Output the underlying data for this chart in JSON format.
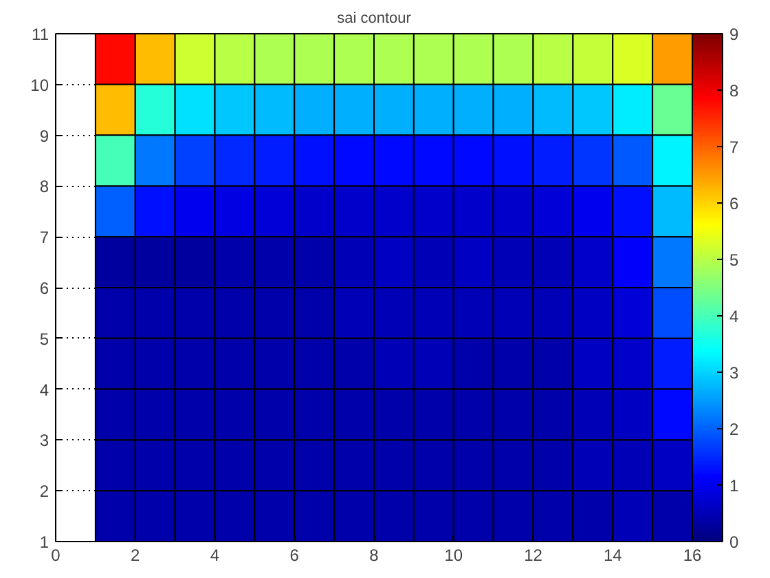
{
  "chart_data": {
    "type": "heatmap",
    "title": "sai contour",
    "x": [
      1.5,
      2.5,
      3.5,
      4.5,
      5.5,
      6.5,
      7.5,
      8.5,
      9.5,
      10.5,
      11.5,
      12.5,
      13.5,
      14.5,
      15.5
    ],
    "y": [
      10.5,
      9.5,
      8.5,
      7.5,
      6.5,
      5.5,
      4.5,
      3.5,
      2.5,
      1.5
    ],
    "cells": [
      [
        7.8,
        6.2,
        5.2,
        5.0,
        4.9,
        4.9,
        4.9,
        4.9,
        4.9,
        4.9,
        4.9,
        5.0,
        5.1,
        5.3,
        6.5
      ],
      [
        6.2,
        3.7,
        3.1,
        2.9,
        2.8,
        2.7,
        2.7,
        2.7,
        2.7,
        2.7,
        2.7,
        2.8,
        2.9,
        3.2,
        4.3
      ],
      [
        4.0,
        2.2,
        1.7,
        1.5,
        1.4,
        1.3,
        1.2,
        1.2,
        1.2,
        1.2,
        1.3,
        1.4,
        1.6,
        1.9,
        3.3
      ],
      [
        2.0,
        1.3,
        1.0,
        0.9,
        0.8,
        0.7,
        0.7,
        0.7,
        0.7,
        0.7,
        0.7,
        0.8,
        1.0,
        1.3,
        2.8
      ],
      [
        0.3,
        0.3,
        0.3,
        0.4,
        0.4,
        0.4,
        0.5,
        0.6,
        0.5,
        0.6,
        0.5,
        0.5,
        0.7,
        1.1,
        2.2
      ],
      [
        0.4,
        0.4,
        0.4,
        0.4,
        0.4,
        0.4,
        0.5,
        0.5,
        0.5,
        0.5,
        0.5,
        0.5,
        0.6,
        0.8,
        1.8
      ],
      [
        0.4,
        0.4,
        0.4,
        0.4,
        0.4,
        0.4,
        0.4,
        0.5,
        0.5,
        0.4,
        0.4,
        0.4,
        0.6,
        0.7,
        1.4
      ],
      [
        0.4,
        0.4,
        0.4,
        0.4,
        0.4,
        0.4,
        0.4,
        0.4,
        0.4,
        0.4,
        0.4,
        0.4,
        0.5,
        0.6,
        1.2
      ],
      [
        0.4,
        0.4,
        0.4,
        0.4,
        0.4,
        0.4,
        0.4,
        0.4,
        0.4,
        0.4,
        0.4,
        0.4,
        0.5,
        0.5,
        0.6
      ],
      [
        0.4,
        0.4,
        0.4,
        0.4,
        0.4,
        0.4,
        0.4,
        0.4,
        0.4,
        0.4,
        0.4,
        0.4,
        0.4,
        0.5,
        0.4
      ]
    ],
    "xlim": [
      0,
      16
    ],
    "ylim": [
      1,
      11
    ],
    "xticks": [
      0,
      2,
      4,
      6,
      8,
      10,
      12,
      14,
      16
    ],
    "yticks": [
      1,
      2,
      3,
      4,
      5,
      6,
      7,
      8,
      9,
      10,
      11
    ],
    "clim": [
      0,
      9
    ],
    "cticks": [
      0,
      1,
      2,
      3,
      4,
      5,
      6,
      7,
      8,
      9
    ],
    "grid": "y"
  }
}
